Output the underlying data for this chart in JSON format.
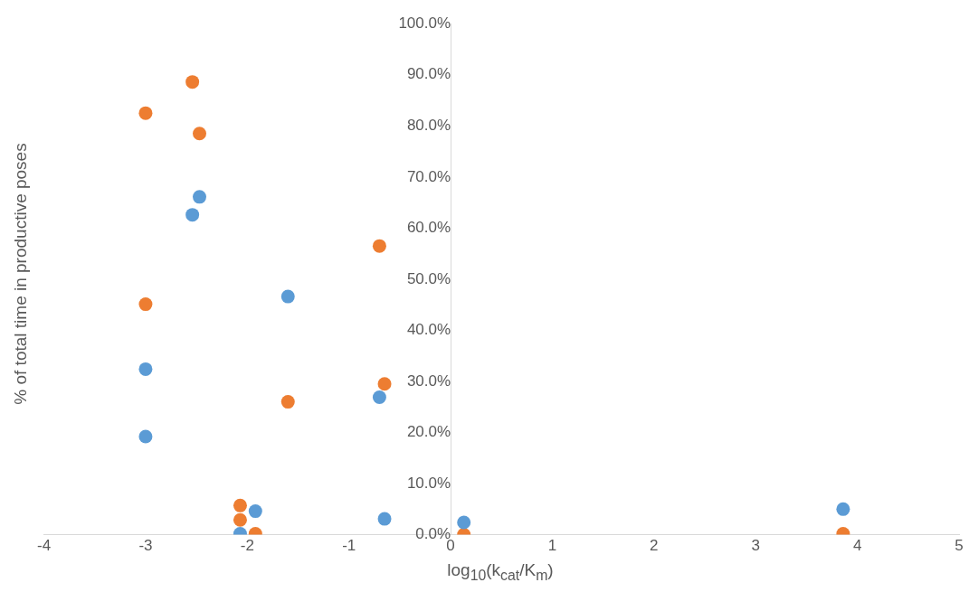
{
  "chart_data": {
    "type": "scatter",
    "xlabel": "log$_{10}$(k$_{cat}$/K$_{m}$)",
    "ylabel": "% of total time in productive poses",
    "xlim": [
      -4,
      5
    ],
    "xticks": [
      -4,
      -3,
      -2,
      -1,
      0,
      1,
      2,
      3,
      4,
      5
    ],
    "ylim": [
      0,
      100
    ],
    "yticks": [
      {
        "value": 0,
        "label": "0.0%"
      },
      {
        "value": 10,
        "label": "10.0%"
      },
      {
        "value": 20,
        "label": "20.0%"
      },
      {
        "value": 30,
        "label": "30.0%"
      },
      {
        "value": 40,
        "label": "40.0%"
      },
      {
        "value": 50,
        "label": "50.0%"
      },
      {
        "value": 60,
        "label": "60.0%"
      },
      {
        "value": 70,
        "label": "70.0%"
      },
      {
        "value": 80,
        "label": "80.0%"
      },
      {
        "value": 90,
        "label": "90.0%"
      },
      {
        "value": 100,
        "label": "100.0%"
      }
    ],
    "grid": false,
    "legend": false,
    "marker": "circle",
    "series": [
      {
        "color": "#5b9bd5",
        "x": [
          -3.0,
          -3.0,
          -2.54,
          -2.47,
          -2.07,
          -1.92,
          -1.6,
          -0.7,
          -0.65,
          0.13,
          3.86
        ],
        "values": [
          32.4,
          19.2,
          62.6,
          66.1,
          0.2,
          4.6,
          46.6,
          26.9,
          3.1,
          2.4,
          5.0
        ]
      },
      {
        "color": "#ed7d31",
        "x": [
          -3.0,
          -3.0,
          -2.54,
          -2.47,
          -2.07,
          -2.07,
          -1.92,
          -1.6,
          -0.7,
          -0.65,
          0.13,
          3.86
        ],
        "values": [
          82.5,
          45.1,
          88.6,
          78.5,
          5.7,
          2.9,
          0.2,
          26.0,
          56.5,
          29.5,
          0,
          0.2
        ]
      }
    ]
  }
}
